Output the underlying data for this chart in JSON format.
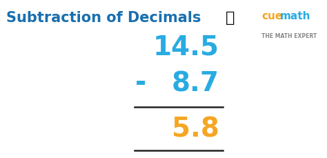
{
  "title": "Subtraction of Decimals",
  "title_color": "#1a6faf",
  "title_fontsize": 15,
  "background_color": "#ffffff",
  "num1": "14.5",
  "num2": "8.7",
  "result": "5.8",
  "operator": "-",
  "num_color": "#29abe2",
  "result_color": "#f5a623",
  "line_color": "#222222",
  "num_fontsize": 28,
  "operator_fontsize": 28,
  "figsize": [
    4.74,
    2.29
  ],
  "dpi": 100,
  "cuemath_subtext": "THE MATH EXPERT",
  "cuemath_color": "#29abe2",
  "cuemath_orange": "#f5a623"
}
